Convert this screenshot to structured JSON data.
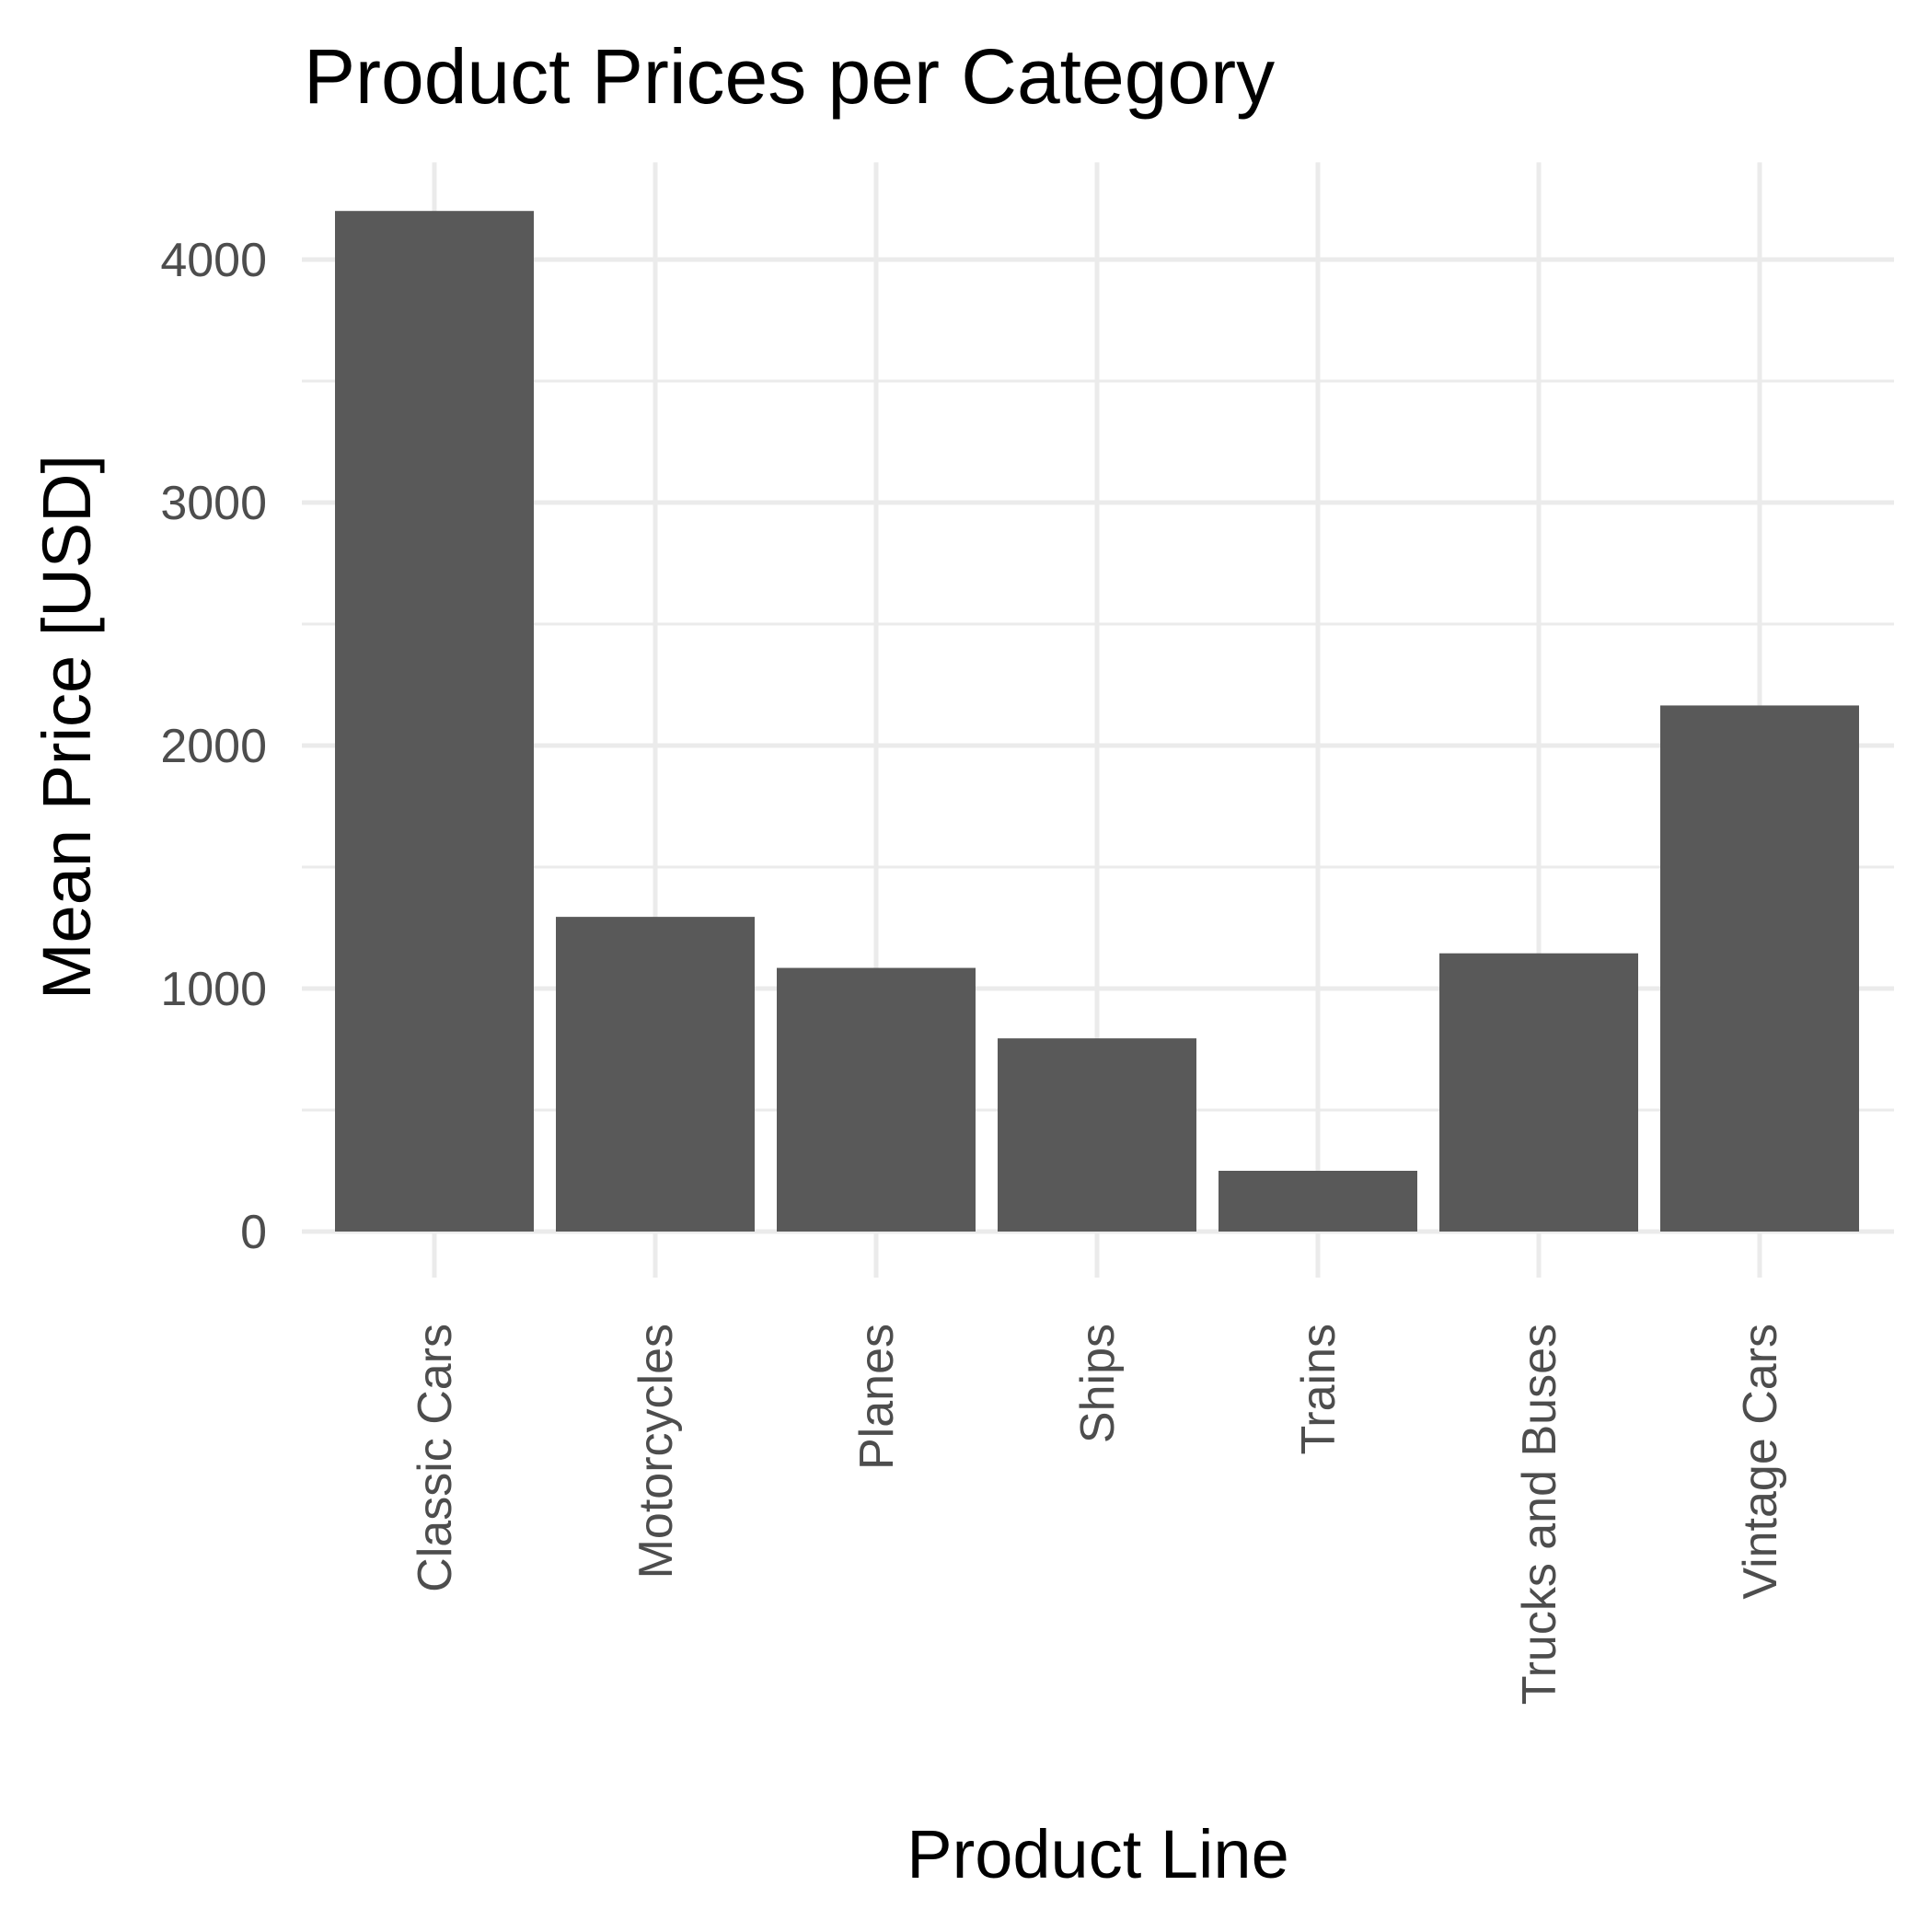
{
  "chart_data": {
    "type": "bar",
    "title": "Product Prices per Category",
    "xlabel": "Product Line",
    "ylabel": "Mean Price [USD]",
    "categories": [
      "Classic Cars",
      "Motorcycles",
      "Planes",
      "Ships",
      "Trains",
      "Trucks and Buses",
      "Vintage Cars"
    ],
    "values": [
      4200,
      1295,
      1085,
      795,
      250,
      1145,
      2165
    ],
    "ylim": [
      0,
      4400
    ],
    "yticks": [
      0,
      1000,
      2000,
      3000,
      4000
    ],
    "ytick_labels": [
      "0",
      "1000",
      "2000",
      "3000",
      "4000"
    ],
    "grid": true,
    "legend": "none",
    "bar_color": "#595959",
    "grid_color": "#ebebeb",
    "background": "#ffffff"
  }
}
